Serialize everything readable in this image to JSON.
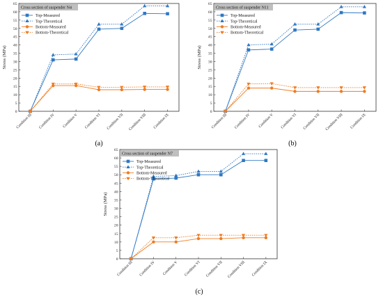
{
  "colors": {
    "measured": "#2f78c4",
    "theoretical": "#2f78c4",
    "bottom": "#f07c22",
    "legend_title_bg": "#bfbfbf"
  },
  "chart_data": [
    {
      "type": "line",
      "panel_label": "(a)",
      "legend_title": "Cross section of suspender N4",
      "ylabel": "Stress (MPa)",
      "ylim": [
        0,
        65
      ],
      "yticks": [
        0,
        5,
        10,
        15,
        20,
        25,
        30,
        35,
        40,
        45,
        50,
        55,
        60,
        65
      ],
      "categories": [
        "Condition III",
        "Condition IV",
        "Condition V",
        "Condition VI",
        "Condition VII",
        "Condition VIII",
        "Condition IX"
      ],
      "series": [
        {
          "name": "Top-Measured",
          "values": [
            0,
            31,
            31.5,
            49.5,
            50,
            59,
            58.8
          ]
        },
        {
          "name": "Top-Theoretical",
          "values": [
            0,
            34,
            34.5,
            52.5,
            52.5,
            63.5,
            63.5
          ]
        },
        {
          "name": "Bottom-Measured",
          "values": [
            0,
            15.5,
            15.5,
            13,
            13,
            13.2,
            13.2
          ]
        },
        {
          "name": "Bottom-Theoretical",
          "values": [
            0,
            16.5,
            16.5,
            14.5,
            14.5,
            14.7,
            14.7
          ]
        }
      ]
    },
    {
      "type": "line",
      "panel_label": "(b)",
      "legend_title": "Cross section of suspender N11",
      "ylabel": "Stress (MPa)",
      "ylim": [
        0,
        65
      ],
      "yticks": [
        0,
        5,
        10,
        15,
        20,
        25,
        30,
        35,
        40,
        45,
        50,
        55,
        60,
        65
      ],
      "categories": [
        "Condition III",
        "Condition IV",
        "Condition V",
        "Condition VI",
        "Condition VII",
        "Condition VIII",
        "Condition IX"
      ],
      "series": [
        {
          "name": "Top-Measured",
          "values": [
            0,
            37,
            37.5,
            49,
            49.5,
            59.5,
            59.3
          ]
        },
        {
          "name": "Top-Theoretical",
          "values": [
            0,
            40,
            40.5,
            52.5,
            52.5,
            63,
            63
          ]
        },
        {
          "name": "Bottom-Measured",
          "values": [
            0,
            14,
            14,
            12,
            12,
            12,
            12
          ]
        },
        {
          "name": "Bottom-Theoretical",
          "values": [
            0,
            16.5,
            16.7,
            14.3,
            14.3,
            14.3,
            14.3
          ]
        }
      ]
    },
    {
      "type": "line",
      "panel_label": "(c)",
      "legend_title": "Cross section of suspender N7",
      "ylabel": "Stress (MPa)",
      "ylim": [
        0,
        65
      ],
      "yticks": [
        0,
        5,
        10,
        15,
        20,
        25,
        30,
        35,
        40,
        45,
        50,
        55,
        60,
        65
      ],
      "categories": [
        "Condition III",
        "Condition IV",
        "Condition V",
        "Condition VI",
        "Condition VII",
        "Condition VIII",
        "Condition IX"
      ],
      "series": [
        {
          "name": "Top-Measured",
          "values": [
            0,
            47.5,
            48,
            50,
            50,
            58.5,
            58.5
          ]
        },
        {
          "name": "Top-Theoretical",
          "values": [
            0,
            49,
            49.5,
            52,
            52,
            62.5,
            62.5
          ]
        },
        {
          "name": "Bottom-Measured",
          "values": [
            0,
            10,
            10,
            12,
            12,
            12.5,
            12.5
          ]
        },
        {
          "name": "Bottom-Theoretical",
          "values": [
            0,
            12.5,
            12.5,
            14,
            14,
            14,
            14
          ]
        }
      ]
    }
  ]
}
